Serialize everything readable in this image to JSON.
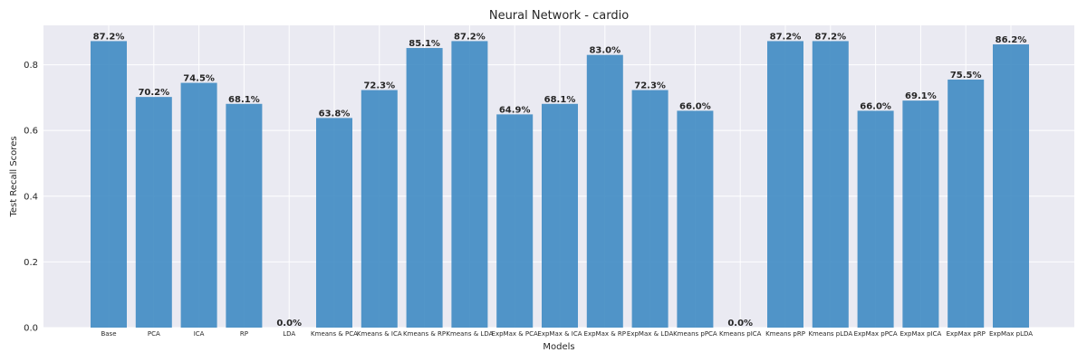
{
  "chart_data": {
    "type": "bar",
    "title": "Neural Network - cardio",
    "xlabel": "Models",
    "ylabel": "Test Recall Scores",
    "ylim": [
      0,
      0.92
    ],
    "yticks": [
      "0.0",
      "0.2",
      "0.4",
      "0.6",
      "0.8"
    ],
    "ytick_values": [
      0,
      0.2,
      0.4,
      0.6,
      0.8
    ],
    "grid": true,
    "bar_color": "#3a87c2",
    "background_color": "#eaeaf2",
    "categories": [
      "Base",
      "PCA",
      "ICA",
      "RP",
      "LDA",
      "Kmeans & PCA",
      "Kmeans & ICA",
      "Kmeans & RP",
      "Kmeans & LDA",
      "ExpMax & PCA",
      "ExpMax & ICA",
      "ExpMax & RP",
      "ExpMax & LDA",
      "Kmeans pPCA",
      "Kmeans pICA",
      "Kmeans pRP",
      "Kmeans pLDA",
      "ExpMax pPCA",
      "ExpMax pICA",
      "ExpMax pRP",
      "ExpMax pLDA"
    ],
    "values": [
      0.872,
      0.702,
      0.745,
      0.681,
      0.0,
      0.638,
      0.723,
      0.851,
      0.872,
      0.649,
      0.681,
      0.83,
      0.723,
      0.66,
      0.0,
      0.872,
      0.872,
      0.66,
      0.691,
      0.755,
      0.862
    ],
    "labels": [
      "87.2%",
      "70.2%",
      "74.5%",
      "68.1%",
      "0.0%",
      "63.8%",
      "72.3%",
      "85.1%",
      "87.2%",
      "64.9%",
      "68.1%",
      "83.0%",
      "72.3%",
      "66.0%",
      "0.0%",
      "87.2%",
      "87.2%",
      "66.0%",
      "69.1%",
      "75.5%",
      "86.2%"
    ]
  }
}
